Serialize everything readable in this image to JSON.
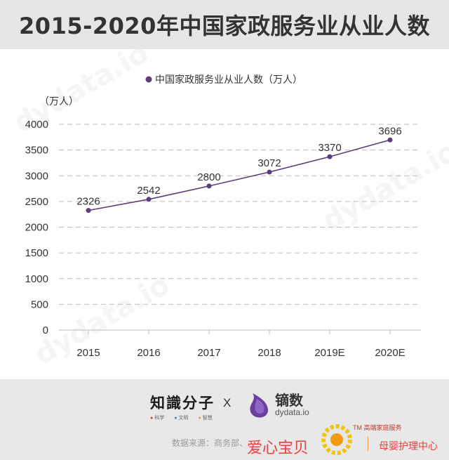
{
  "title": "2015-2020年中国家政服务业从业人数",
  "chart_data": {
    "type": "line",
    "categories": [
      "2015",
      "2016",
      "2017",
      "2018",
      "2019E",
      "2020E"
    ],
    "series": [
      {
        "name": "中国家政服务业从业人数（万人）",
        "values": [
          2326,
          2542,
          2800,
          3072,
          3370,
          3696
        ]
      }
    ],
    "ylabel": "（万人）",
    "ylim": [
      0,
      4000
    ],
    "yticks": [
      0,
      500,
      1000,
      1500,
      2000,
      2500,
      3000,
      3500,
      4000
    ],
    "grid": true,
    "legend_position": "top-center",
    "color": "#5b3d7a"
  },
  "footer": {
    "logo1_main": "知識分子",
    "logo1_tags": [
      "科学",
      "文明",
      "智慧"
    ],
    "separator": "X",
    "logo2_main": "镝数",
    "logo2_sub": "dydata.io",
    "source": "数据来源：商务部、"
  },
  "watermark": {
    "aixin": "爱心宝贝",
    "tm_text": "TM 高端家庭服务",
    "muying": "母婴护理中心"
  }
}
